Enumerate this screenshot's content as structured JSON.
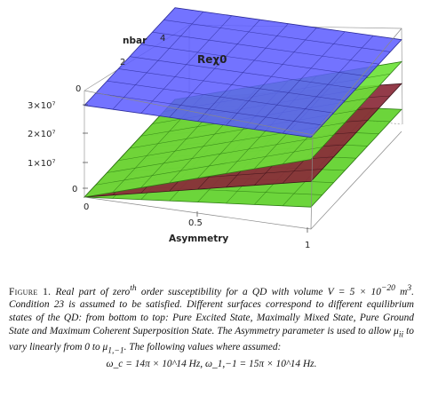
{
  "chart_data": {
    "type": "surface3d",
    "title": "Reχ0",
    "axes": {
      "nbar": {
        "label": "nbar",
        "ticks": [
          "0",
          "2",
          "4"
        ],
        "range": [
          0,
          4
        ]
      },
      "asymmetry": {
        "label": "Asymmetry",
        "ticks": [
          "0",
          "0.5",
          "1"
        ],
        "range": [
          0,
          1
        ]
      },
      "value": {
        "label": "",
        "ticks": [
          "0",
          "1×10⁷",
          "2×10⁷",
          "3×10⁷"
        ],
        "range": [
          0,
          30000000
        ]
      }
    },
    "series": [
      {
        "color": "#5fd12a",
        "edge": "#2c7a12",
        "corners": {
          "a0_n0": 0,
          "a0_n4": 0,
          "a1_n0": 6000000,
          "a1_n4": 6000000
        }
      },
      {
        "color": "#8a2a3a",
        "edge": "#3a1018",
        "corners": {
          "a0_n0": 0,
          "a0_n4": 0,
          "a1_n0": 13000000,
          "a1_n4": 13000000
        }
      },
      {
        "color": "#6ee23a",
        "edge": "#2c7a12",
        "corners": {
          "a0_n0": 0,
          "a0_n4": 0,
          "a1_n0": 19000000,
          "a1_n4": 19000000
        }
      },
      {
        "color": "#5b5bff",
        "edge": "#2a2a99",
        "corners": {
          "a0_n0": 25000000,
          "a0_n4": 25000000,
          "a1_n0": 25000000,
          "a1_n4": 25000000
        }
      }
    ]
  },
  "caption": {
    "label": "Figure 1.",
    "body": "Real part of zero",
    "body_sup": "th",
    "body2": " order susceptibility for a QD with volume V = 5 × 10",
    "body2_sup": "−20",
    "body3": " m",
    "body3_sup": "3",
    "body4": ". Condition 23 is assumed to be satisfied. Different surfaces correspond to different equilibrium states of the QD: from bottom to top: Pure Excited State, Maximally Mixed State, Pure Ground State and Maximum Coherent Superposition State. The Asymmetry parameter is used to allow μ",
    "body4_sub": "ii",
    "body5": " to vary linearly from 0 to μ",
    "body5_sub": "1,−1",
    "body6": ". The following values where assumed:",
    "equation": "ω_c = 14π × 10^14 Hz, ω_1,−1 = 15π × 10^14 Hz."
  }
}
